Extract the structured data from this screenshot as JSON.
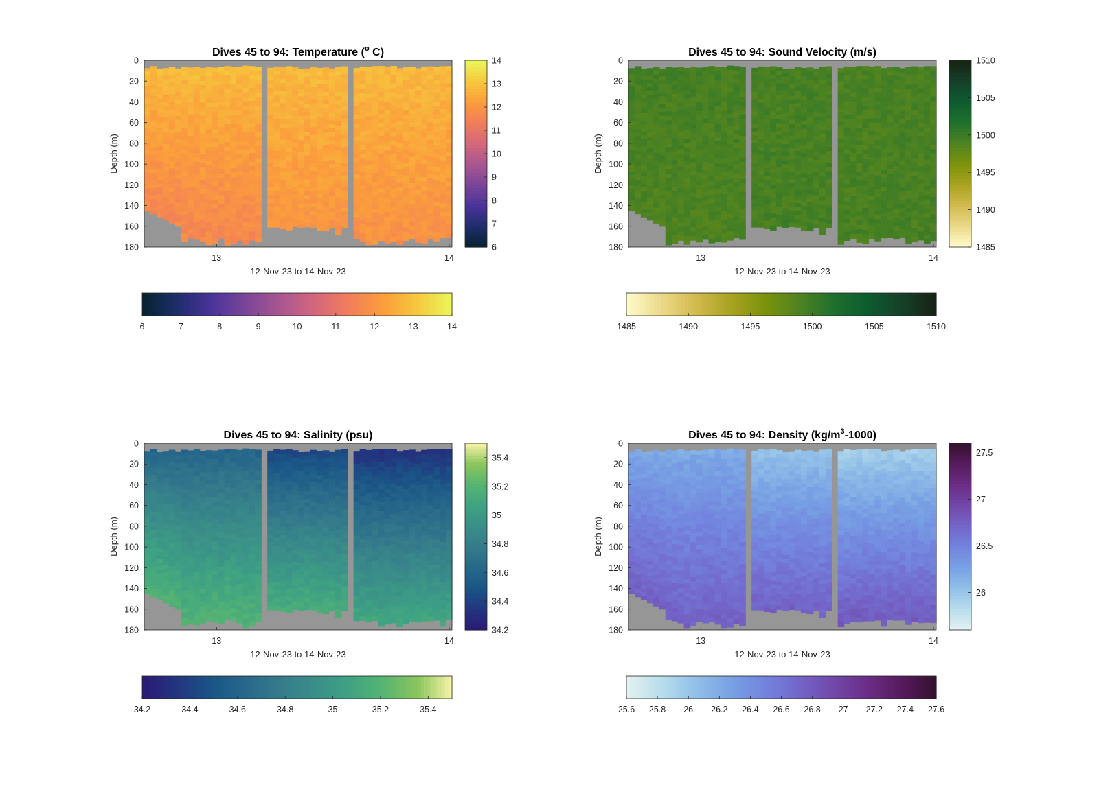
{
  "chart_data": [
    {
      "type": "heatmap",
      "title": "Dives 45 to 94: Temperature (",
      "title_sup": "o",
      "title_tail": " C)",
      "xlabel": "12-Nov-23 to 14-Nov-23",
      "ylabel": "Depth (m)",
      "xticks": [
        "13",
        "14"
      ],
      "yticks": [
        "0",
        "20",
        "40",
        "60",
        "80",
        "100",
        "120",
        "140",
        "160",
        "180"
      ],
      "ylim": [
        0,
        180
      ],
      "colormap": "thermal",
      "clim": [
        6,
        14
      ],
      "colorbar_ticks": [
        "6",
        "7",
        "8",
        "9",
        "10",
        "11",
        "12",
        "13",
        "14"
      ],
      "h_colorbar_ticks": [
        "6",
        "7",
        "8",
        "9",
        "10",
        "11",
        "12",
        "13",
        "14"
      ],
      "profile_columns": 50,
      "surface_values": [
        13.0,
        12.9,
        12.9
      ],
      "bottom_values": [
        11.6,
        12.0,
        11.9
      ],
      "gap_color": "#969696"
    },
    {
      "type": "heatmap",
      "title": "Dives 45 to 94: Sound Velocity (m/s)",
      "xlabel": "12-Nov-23 to 14-Nov-23",
      "ylabel": "Depth (m)",
      "xticks": [
        "13",
        "14"
      ],
      "yticks": [
        "0",
        "20",
        "40",
        "60",
        "80",
        "100",
        "120",
        "140",
        "160",
        "180"
      ],
      "ylim": [
        0,
        180
      ],
      "colormap": "speed",
      "clim": [
        1485,
        1510
      ],
      "colorbar_ticks": [
        "1485",
        "1490",
        "1495",
        "1500",
        "1505",
        "1510"
      ],
      "h_colorbar_ticks": [
        "1485",
        "1490",
        "1495",
        "1500",
        "1505",
        "1510"
      ],
      "profile_columns": 50,
      "surface_values": [
        1499.5,
        1499.3,
        1499.2
      ],
      "bottom_values": [
        1499.0,
        1499.4,
        1499.3
      ],
      "gap_color": "#969696"
    },
    {
      "type": "heatmap",
      "title": "Dives 45 to 94: Salinity (psu)",
      "xlabel": "12-Nov-23 to 14-Nov-23",
      "ylabel": "Depth (m)",
      "xticks": [
        "13",
        "14"
      ],
      "yticks": [
        "0",
        "20",
        "40",
        "60",
        "80",
        "100",
        "120",
        "140",
        "160",
        "180"
      ],
      "ylim": [
        0,
        180
      ],
      "colormap": "haline",
      "clim": [
        34.2,
        35.5
      ],
      "colorbar_ticks": [
        "34.2",
        "34.4",
        "34.6",
        "34.8",
        "35",
        "35.2",
        "35.4"
      ],
      "h_colorbar_ticks": [
        "34.2",
        "34.4",
        "34.6",
        "34.8",
        "35",
        "35.2",
        "35.4"
      ],
      "profile_columns": 50,
      "surface_values": [
        34.55,
        34.35,
        34.25
      ],
      "bottom_values": [
        35.2,
        35.15,
        35.1
      ],
      "gap_color": "#969696"
    },
    {
      "type": "heatmap",
      "title": "Dives 45 to 94: Density (kg/m",
      "title_sup": "3",
      "title_tail": "-1000)",
      "xlabel": "12-Nov-23 to 14-Nov-23",
      "ylabel": "Depth (m)",
      "xticks": [
        "13",
        "14"
      ],
      "yticks": [
        "0",
        "20",
        "40",
        "60",
        "80",
        "100",
        "120",
        "140",
        "160",
        "180"
      ],
      "ylim": [
        0,
        180
      ],
      "colormap": "dense",
      "clim": [
        25.6,
        27.6
      ],
      "colorbar_ticks": [
        "26",
        "26.5",
        "27",
        "27.5"
      ],
      "h_colorbar_ticks": [
        "25.6",
        "25.8",
        "26",
        "26.2",
        "26.4",
        "26.6",
        "26.8",
        "27",
        "27.2",
        "27.4",
        "27.6"
      ],
      "profile_columns": 50,
      "surface_values": [
        26.15,
        25.95,
        25.85
      ],
      "bottom_values": [
        26.75,
        26.75,
        26.8
      ],
      "gap_color": "#969696"
    }
  ]
}
